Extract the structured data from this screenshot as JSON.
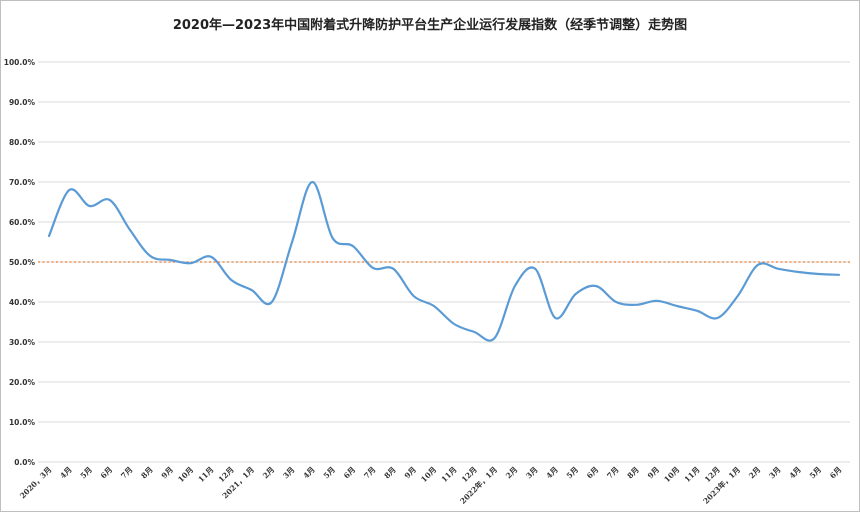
{
  "title": "2020年—2023年中国附着式升降防护平台生产企业运行发展指数（经季节调整）走势图",
  "chart_data": {
    "type": "line",
    "title": "2020年—2023年中国附着式升降防护平台生产企业运行发展指数（经季节调整）走势图",
    "xlabel": "",
    "ylabel": "",
    "ylim": [
      0,
      100
    ],
    "y_ticks": [
      "0.0%",
      "10.0%",
      "20.0%",
      "30.0%",
      "40.0%",
      "50.0%",
      "60.0%",
      "70.0%",
      "80.0%",
      "90.0%",
      "100.0%"
    ],
    "grid": true,
    "legend": "none",
    "categories": [
      "2020，3月",
      "4月",
      "5月",
      "6月",
      "7月",
      "8月",
      "9月",
      "10月",
      "11月",
      "12月",
      "2021，1月",
      "2月",
      "3月",
      "4月",
      "5月",
      "6月",
      "7月",
      "8月",
      "9月",
      "10月",
      "11月",
      "12月",
      "2022年，1月",
      "2月",
      "3月",
      "4月",
      "5月",
      "6月",
      "7月",
      "8月",
      "9月",
      "10月",
      "11月",
      "12月",
      "2023年，1月",
      "2月",
      "3月",
      "4月",
      "5月",
      "6月"
    ],
    "series": [
      {
        "color": "#5b9bd5",
        "values": [
          56.5,
          68.0,
          64.0,
          65.5,
          58.0,
          51.5,
          50.5,
          49.7,
          51.3,
          45.5,
          43.0,
          40.0,
          55.0,
          70.0,
          56.0,
          54.0,
          48.5,
          48.3,
          41.5,
          39.0,
          34.5,
          32.5,
          31.0,
          44.0,
          48.3,
          36.0,
          42.0,
          44.0,
          40.0,
          39.3,
          40.3,
          39.0,
          37.8,
          36.0,
          41.5,
          49.3,
          48.3,
          47.5,
          47.0,
          46.8
        ]
      }
    ],
    "reference_line": {
      "value": 50,
      "color": "#ed7d31",
      "style": "dotted"
    }
  }
}
